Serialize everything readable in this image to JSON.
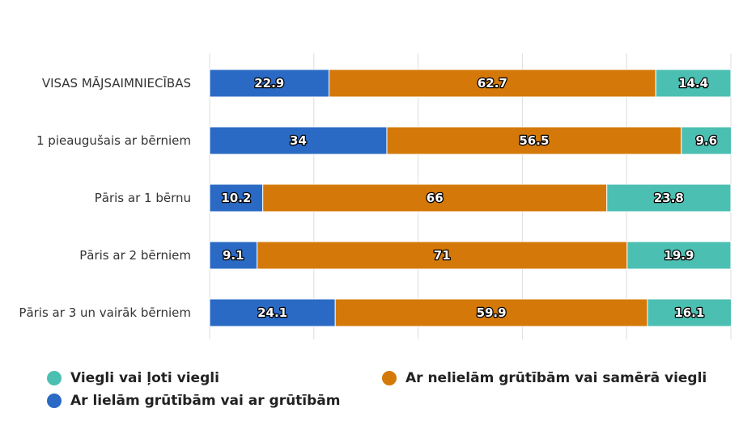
{
  "chart_data": {
    "type": "bar",
    "orientation": "horizontal",
    "stacked": true,
    "categories": [
      "VISAS MĀJSAIMNIECĪBAS",
      "1 pieaugušais ar bērniem",
      "Pāris ar 1 bērnu",
      "Pāris ar 2 bērniem",
      "Pāris ar 3 un vairāk bērniem"
    ],
    "series": [
      {
        "name": "Ar lielām grūtībām vai ar grūtībām",
        "color": "#2a6ac4",
        "values": [
          22.9,
          34,
          10.2,
          9.1,
          24.1
        ]
      },
      {
        "name": "Ar nelielām grūtībām vai samērā viegli",
        "color": "#d47909",
        "values": [
          62.7,
          56.5,
          66,
          71,
          59.9
        ]
      },
      {
        "name": "Viegli vai ļoti viegli",
        "color": "#4bbfb2",
        "values": [
          14.4,
          9.6,
          23.8,
          19.9,
          16.1
        ]
      }
    ],
    "xlim": [
      0,
      100
    ],
    "grid": true,
    "legend": "bottom"
  },
  "legend_items": [
    {
      "label": "Viegli vai ļoti viegli",
      "color": "#4bbfb2"
    },
    {
      "label": "Ar nelielām grūtībām vai samērā viegli",
      "color": "#d47909"
    },
    {
      "label": "Ar lielām grūtībām vai ar grūtībām",
      "color": "#2a6ac4"
    }
  ]
}
